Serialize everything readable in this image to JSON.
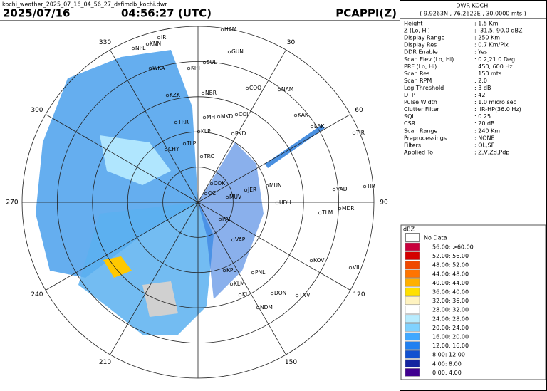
{
  "file_name": "kochi_weather_2025_07_16_04_56_27_dsfimdb_kochi.dwr",
  "date": "2025/07/16",
  "time": "04:56:27 (UTC)",
  "product": "PCAPPI(Z)",
  "radar": {
    "name": "DWR KOCHI",
    "location": "( 9.9263N , 76.2622E , 30.0000 mts )"
  },
  "parameters": [
    {
      "key": "Height",
      "value": ": 1.5 Km"
    },
    {
      "key": "Z (Lo, Hi)",
      "value": ": -31.5, 90.0 dBZ"
    },
    {
      "key": "Display Range",
      "value": ": 250 Km"
    },
    {
      "key": "Display Res",
      "value": ": 0.7 Km/Pix"
    },
    {
      "key": "DDR Enable",
      "value": ": Yes"
    },
    {
      "key": "Scan Elev (Lo, Hi)",
      "value": ": 0.2,21.0 Deg"
    },
    {
      "key": "PRF (Lo, Hi)",
      "value": ": 450, 600 Hz"
    },
    {
      "key": "Scan Res",
      "value": ": 150 mts"
    },
    {
      "key": "Scan RPM",
      "value": ": 2.0"
    },
    {
      "key": "Log Threshold",
      "value": ": 3 dB"
    },
    {
      "key": "DTP",
      "value": ": 42"
    },
    {
      "key": "Pulse Width",
      "value": ": 1.0 micro sec"
    },
    {
      "key": "Clutter Filter",
      "value": ": IIR-HP(36.0 Hz)"
    },
    {
      "key": "SQI",
      "value": ": 0.25"
    },
    {
      "key": "CSR",
      "value": ": 20 dB"
    },
    {
      "key": "Scan Range",
      "value": ": 240 Km"
    },
    {
      "key": "Preprocessings",
      "value": ": NONE"
    },
    {
      "key": "Filters",
      "value": ": OL,SF"
    },
    {
      "key": "Applied To",
      "value": ": Z,V,Zd,Pdp"
    }
  ],
  "legend": {
    "title": "dBZ",
    "no_data": "No Data",
    "items": [
      {
        "color": "#c8003c",
        "label": "56.00: >60.00"
      },
      {
        "color": "#d40000",
        "label": "52.00: 56.00"
      },
      {
        "color": "#f04800",
        "label": "48.00: 52.00"
      },
      {
        "color": "#ff7400",
        "label": "44.00: 48.00"
      },
      {
        "color": "#ffb000",
        "label": "40.00: 44.00"
      },
      {
        "color": "#ffe000",
        "label": "36.00: 40.00"
      },
      {
        "color": "#fff3c0",
        "label": "32.00: 36.00"
      },
      {
        "color": "#ffffff",
        "label": "28.00: 32.00"
      },
      {
        "color": "#b8ecff",
        "label": "24.00: 28.00"
      },
      {
        "color": "#80d2ff",
        "label": "20.00: 24.00"
      },
      {
        "color": "#40a8ff",
        "label": "16.00: 20.00"
      },
      {
        "color": "#2080f0",
        "label": "12.00: 16.00"
      },
      {
        "color": "#1050d0",
        "label": "8.00: 12.00"
      },
      {
        "color": "#1424a0",
        "label": "4.00: 8.00"
      },
      {
        "color": "#400090",
        "label": "0.00: 4.00"
      }
    ]
  },
  "azimuth_labels": [
    30,
    60,
    90,
    120,
    150,
    210,
    240,
    270,
    300,
    330
  ],
  "places": [
    "HAM",
    "GUN",
    "SUL",
    "KPT",
    "COO",
    "NAM",
    "NBR",
    "KAN",
    "LAK",
    "TIR",
    "MKD",
    "COI",
    "MH",
    "TRR",
    "KLP",
    "PKD",
    "CHY",
    "TLP",
    "TRC",
    "VAD",
    "TIR",
    "MDR",
    "TLM",
    "UDU",
    "COK",
    "MUV",
    "OC",
    "KOV",
    "VIL",
    "PNL",
    "TNV",
    "KLM",
    "KPL",
    "KL",
    "DON",
    "NDM",
    "IRI",
    "KNN",
    "NPL",
    "WKA",
    "KZK",
    "MUN",
    "JER",
    "PAL",
    "VAP"
  ]
}
